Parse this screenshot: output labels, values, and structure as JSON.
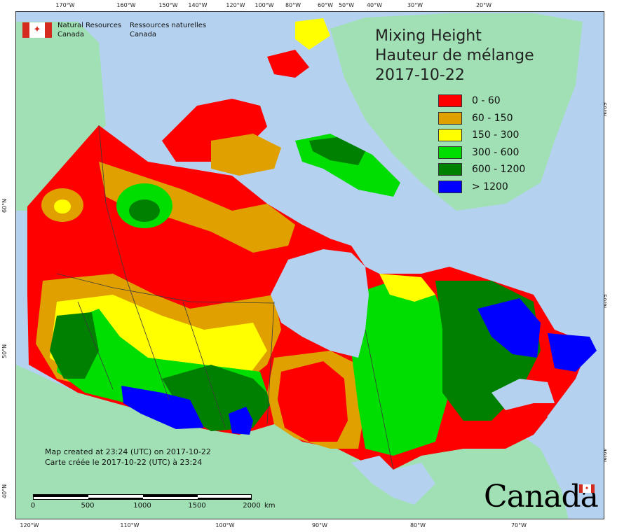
{
  "agency": {
    "name_en_line1": "Natural Resources",
    "name_en_line2": "Canada",
    "name_fr_line1": "Ressources naturelles",
    "name_fr_line2": "Canada"
  },
  "title": {
    "line1": "Mixing Height",
    "line2": "Hauteur de mélange",
    "date": "2017-10-22"
  },
  "legend": [
    {
      "label": "0 - 60",
      "color": "#ff0000"
    },
    {
      "label": "60 - 150",
      "color": "#e0a000"
    },
    {
      "label": "150 - 300",
      "color": "#ffff00"
    },
    {
      "label": "300 - 600",
      "color": "#00dd00"
    },
    {
      "label": "600 - 1200",
      "color": "#008000"
    },
    {
      "label": "> 1200",
      "color": "#0000ff"
    }
  ],
  "colors": {
    "ocean": "#b4d2f0",
    "land_outside": "#a0e0b4",
    "border": "#3a3a3a"
  },
  "graticule": {
    "top": [
      "170°W",
      "160°W",
      "150°W",
      "140°W",
      "120°W",
      "100°W",
      "80°W",
      "60°W",
      "50°W",
      "40°W",
      "30°W",
      "20°W"
    ],
    "bottom": [
      "120°W",
      "110°W",
      "100°W",
      "90°W",
      "80°W",
      "70°W"
    ],
    "left": [
      "60°N",
      "50°N",
      "40°N"
    ],
    "right": [
      "60°N",
      "50°N",
      "40°N"
    ]
  },
  "credits": {
    "created_en": "Map created at 23:24 (UTC) on 2017-10-22",
    "created_fr": "Carte créée le 2017-10-22 (UTC) à 23:24"
  },
  "scale": {
    "ticks": [
      "0",
      "500",
      "1000",
      "1500",
      "2000"
    ],
    "unit": "km"
  },
  "wordmark": "Canada"
}
